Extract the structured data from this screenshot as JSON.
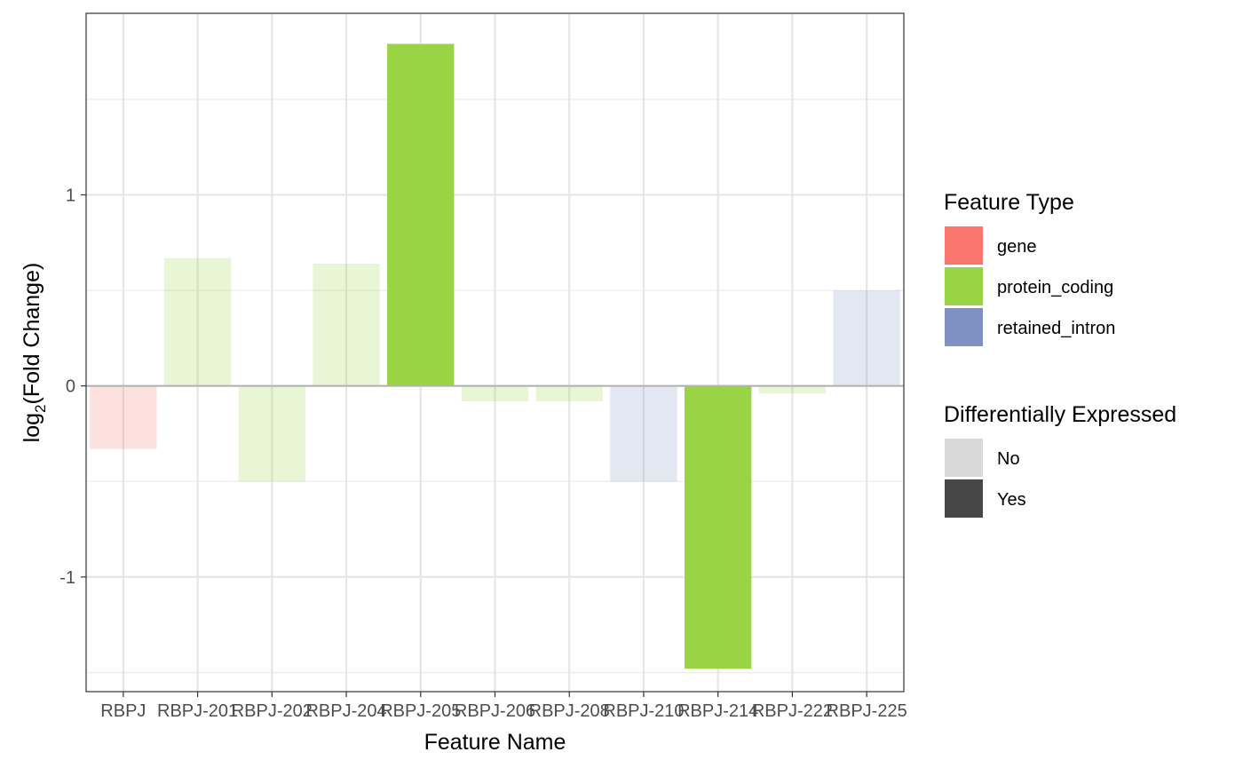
{
  "chart_data": {
    "type": "bar",
    "categories": [
      "RBPJ",
      "RBPJ-201",
      "RBPJ-202",
      "RBPJ-204",
      "RBPJ-205",
      "RBPJ-206",
      "RBPJ-208",
      "RBPJ-210",
      "RBPJ-214",
      "RBPJ-222",
      "RBPJ-225"
    ],
    "values": [
      -0.33,
      0.67,
      -0.5,
      0.64,
      1.79,
      -0.08,
      -0.08,
      -0.5,
      -1.48,
      -0.04,
      0.5
    ],
    "feature_type": [
      "gene",
      "protein_coding",
      "protein_coding",
      "protein_coding",
      "protein_coding",
      "protein_coding",
      "protein_coding",
      "retained_intron",
      "protein_coding",
      "protein_coding",
      "retained_intron"
    ],
    "differentially_expressed": [
      "No",
      "No",
      "No",
      "No",
      "Yes",
      "No",
      "No",
      "No",
      "Yes",
      "No",
      "No"
    ],
    "xlabel": "Feature Name",
    "ylabel_prefix": "log",
    "ylabel_subscript": "2",
    "ylabel_body": "(Fold Change)",
    "ylim": [
      -1.6,
      1.95
    ],
    "yticks": [
      -1,
      0,
      1
    ],
    "ytick_labels": [
      "-1",
      "0",
      "1"
    ],
    "grid": true,
    "legend_position": "right",
    "legends": [
      {
        "title": "Feature Type",
        "items": [
          {
            "label": "gene",
            "color": "#F8766D"
          },
          {
            "label": "protein_coding",
            "color": "#99D444"
          },
          {
            "label": "retained_intron",
            "color": "#7E91C2"
          }
        ]
      },
      {
        "title": "Differentially Expressed",
        "items": [
          {
            "label": "No",
            "color": "#D9D9D9"
          },
          {
            "label": "Yes",
            "color": "#474747"
          }
        ]
      }
    ],
    "colors": {
      "gene": "#F8766D",
      "protein_coding": "#99D444",
      "retained_intron": "#7E91C2"
    },
    "non_de_alpha": 0.22
  }
}
